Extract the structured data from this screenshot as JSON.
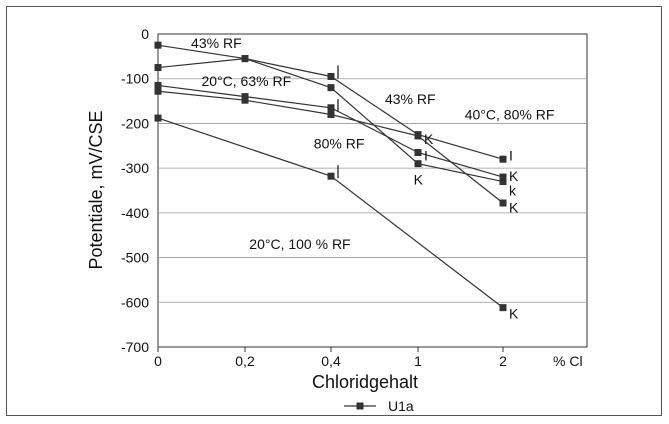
{
  "chart_data": {
    "type": "line",
    "ylabel": "Potentiale, mV/CSE",
    "xlabel": "Chloridgehalt",
    "x_unit_label": "% Cl",
    "categories": [
      "0",
      "0,2",
      "0,4",
      "1",
      "2"
    ],
    "ylim": [
      -700,
      0
    ],
    "yticks": [
      0,
      -100,
      -200,
      -300,
      -400,
      -500,
      -600,
      -700
    ],
    "grid": "horizontal",
    "legend": {
      "label": "U1a",
      "position": "bottom-center"
    },
    "series": [
      {
        "values": [
          -25,
          -55,
          -95,
          -225,
          -280
        ]
      },
      {
        "values": [
          -75,
          -55,
          -120,
          -290,
          -330
        ]
      },
      {
        "values": [
          -115,
          -140,
          -165,
          -265,
          -320
        ]
      },
      {
        "values": [
          -128,
          -148,
          -180,
          -228,
          -378
        ]
      },
      {
        "values": [
          -188,
          null,
          -318,
          null,
          -612
        ]
      }
    ],
    "annotations": [
      {
        "text": "43% RF",
        "x": 0.38,
        "y": -20
      },
      {
        "text": "20°C, 63% RF",
        "x": 0.5,
        "y": -105
      },
      {
        "text": "43% RF",
        "x": 2.62,
        "y": -145
      },
      {
        "text": "40°C, 80% RF",
        "x": 3.55,
        "y": -180
      },
      {
        "text": "80% RF",
        "x": 1.8,
        "y": -245
      },
      {
        "text": "20°C, 100 % RF",
        "x": 1.05,
        "y": -470
      },
      {
        "text": "K",
        "x": 3.07,
        "y": -235
      },
      {
        "text": "I",
        "x": 3.07,
        "y": -272
      },
      {
        "text": "K",
        "x": 2.95,
        "y": -325
      },
      {
        "text": "I",
        "x": 4.07,
        "y": -272
      },
      {
        "text": "K",
        "x": 4.07,
        "y": -318
      },
      {
        "text": "k",
        "x": 4.07,
        "y": -350
      },
      {
        "text": "K",
        "x": 4.07,
        "y": -388
      },
      {
        "text": "K",
        "x": 4.07,
        "y": -625
      }
    ],
    "bar_marks": [
      {
        "x": 2,
        "y": -95
      },
      {
        "x": 2,
        "y": -170
      },
      {
        "x": 2,
        "y": -318
      }
    ]
  }
}
